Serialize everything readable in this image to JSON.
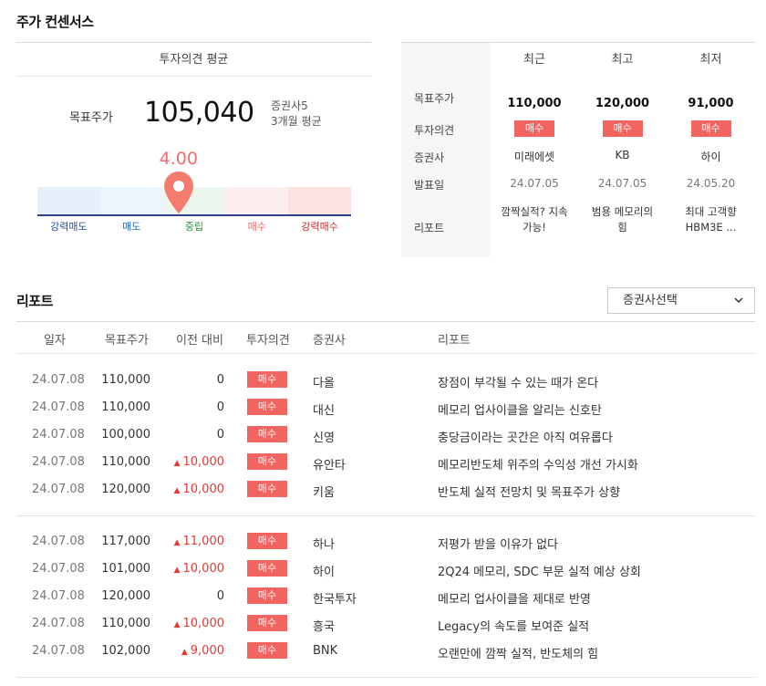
{
  "consensus": {
    "title": "주가 컨센서스",
    "avg_header": "투자의견 평균",
    "target_label": "목표주가",
    "target_value": "105,040",
    "brokers": "증권사5",
    "period": "3개월 평균",
    "score": "4.00",
    "score_value": 4.0,
    "scale": [
      {
        "label": "강력매도",
        "color": "#1f4e9b",
        "bg": "#e6eef9"
      },
      {
        "label": "매도",
        "color": "#1f68c7",
        "bg": "#eef4fc"
      },
      {
        "label": "중립",
        "color": "#2e8b3c",
        "bg": "#edf6ee"
      },
      {
        "label": "매수",
        "color": "#f26460",
        "bg": "#fdeeee"
      },
      {
        "label": "강력매수",
        "color": "#c62828",
        "bg": "#fbe3e3"
      }
    ]
  },
  "compare": {
    "columns": [
      "최근",
      "최고",
      "최저"
    ],
    "row_labels": [
      "목표주가",
      "투자의견",
      "증권사",
      "발표일",
      "리포트"
    ],
    "data": [
      {
        "price": "110,000",
        "opinion": "매수",
        "broker": "미래에셋",
        "date": "24.07.05",
        "report": "깜짝실적? 지속가능!"
      },
      {
        "price": "120,000",
        "opinion": "매수",
        "broker": "KB",
        "date": "24.07.05",
        "report": "범용 메모리의 힘"
      },
      {
        "price": "91,000",
        "opinion": "매수",
        "broker": "하이",
        "date": "24.05.20",
        "report": "최대 고객향 HBM3E ..."
      }
    ]
  },
  "reports": {
    "title": "리포트",
    "select_label": "증권사선택",
    "headers": [
      "일자",
      "목표주가",
      "이전 대비",
      "투자의견",
      "증권사",
      "리포트"
    ],
    "rows": [
      {
        "date": "24.07.08",
        "price": "110,000",
        "diff": "0",
        "up": false,
        "opinion": "매수",
        "broker": "다올",
        "title": "장점이 부각될 수 있는 때가 온다"
      },
      {
        "date": "24.07.08",
        "price": "110,000",
        "diff": "0",
        "up": false,
        "opinion": "매수",
        "broker": "대신",
        "title": "메모리 업사이클을 알리는 신호탄"
      },
      {
        "date": "24.07.08",
        "price": "100,000",
        "diff": "0",
        "up": false,
        "opinion": "매수",
        "broker": "신영",
        "title": "충당금이라는 곳간은 아직 여유롭다"
      },
      {
        "date": "24.07.08",
        "price": "110,000",
        "diff": "10,000",
        "up": true,
        "opinion": "매수",
        "broker": "유안타",
        "title": "메모리반도체 위주의 수익성 개선 가시화"
      },
      {
        "date": "24.07.08",
        "price": "120,000",
        "diff": "10,000",
        "up": true,
        "opinion": "매수",
        "broker": "키움",
        "title": "반도체 실적 전망치 및 목표주가 상향"
      },
      {
        "date": "24.07.08",
        "price": "117,000",
        "diff": "11,000",
        "up": true,
        "opinion": "매수",
        "broker": "하나",
        "title": "저평가 받을 이유가 없다"
      },
      {
        "date": "24.07.08",
        "price": "101,000",
        "diff": "10,000",
        "up": true,
        "opinion": "매수",
        "broker": "하이",
        "title": "2Q24 메모리, SDC 부문 실적 예상 상회"
      },
      {
        "date": "24.07.08",
        "price": "120,000",
        "diff": "0",
        "up": false,
        "opinion": "매수",
        "broker": "한국투자",
        "title": "메모리 업사이클을 제대로 반영"
      },
      {
        "date": "24.07.08",
        "price": "110,000",
        "diff": "10,000",
        "up": true,
        "opinion": "매수",
        "broker": "흥국",
        "title": "Legacy의 속도를 보여준 실적"
      },
      {
        "date": "24.07.08",
        "price": "102,000",
        "diff": "9,000",
        "up": true,
        "opinion": "매수",
        "broker": "BNK",
        "title": "오랜만에 깜짝 실적, 반도체의 힘"
      }
    ]
  }
}
